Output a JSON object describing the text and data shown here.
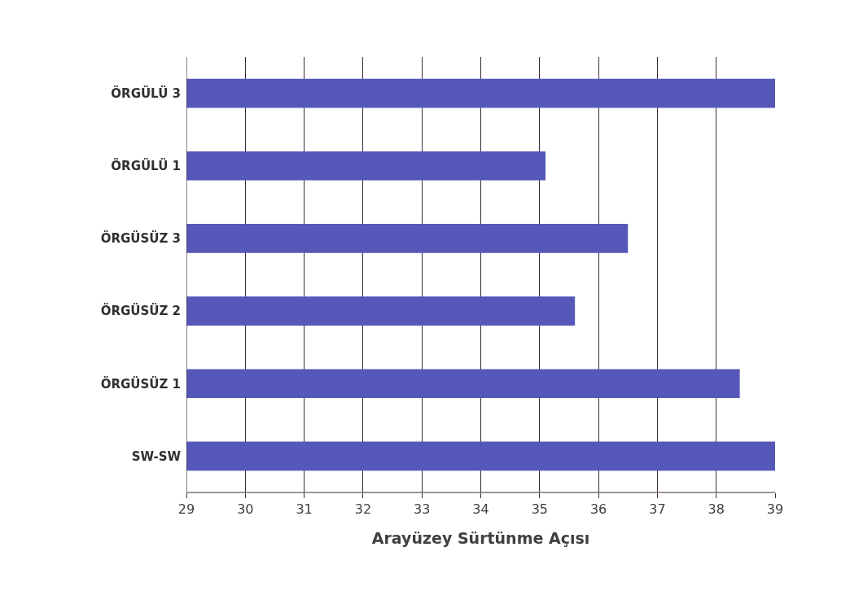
{
  "chart_data": {
    "type": "bar",
    "orientation": "horizontal",
    "xlabel": "Arayüzey Sürtünme Açısı",
    "categories": [
      "ÖRGÜLÜ 3",
      "ÖRGÜLÜ 1",
      "ÖRGÜSÜZ 3",
      "ÖRGÜSÜZ 2",
      "ÖRGÜSÜZ 1",
      "SW-SW"
    ],
    "values": [
      39.0,
      35.1,
      36.5,
      35.6,
      38.4,
      39.0
    ],
    "color": "#5558b8",
    "xlim": [
      29,
      39
    ],
    "xticks": [
      29,
      30,
      31,
      32,
      33,
      34,
      35,
      36,
      37,
      38,
      39
    ],
    "grid": "x"
  }
}
